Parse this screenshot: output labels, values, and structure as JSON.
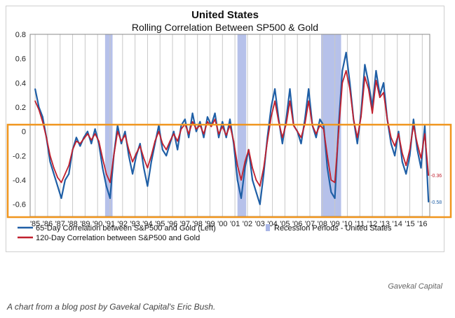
{
  "chart_data": {
    "type": "line",
    "title": "United States",
    "subtitle": "Rolling Correlation Between SP500 & Gold",
    "ylim": [
      -0.7,
      0.8
    ],
    "yticks": [
      0.8,
      0.6,
      0.4,
      0.2,
      0,
      -0.2,
      -0.4,
      -0.6
    ],
    "ytick_labels": [
      "0.8",
      "0.6",
      "0.4",
      "0.2",
      "0",
      "-0.2",
      "-0.4",
      "-0.6"
    ],
    "xlim": [
      1984.6,
      2016.6
    ],
    "xtick_labels": [
      "'85",
      "'86",
      "'87",
      "'88",
      "'89",
      "'90",
      "'91",
      "'92",
      "'93",
      "'94",
      "'95",
      "'96",
      "'97",
      "'98",
      "'99",
      "'00",
      "'01",
      "'02",
      "'03",
      "'04",
      "'05",
      "'06",
      "'07",
      "'08",
      "'09",
      "'10",
      "'11",
      "'12",
      "'13",
      "'14",
      "'15",
      "'16"
    ],
    "grid": true,
    "legend_position": "bottom",
    "recessions": [
      [
        1990.6,
        1991.2
      ],
      [
        2001.2,
        2001.9
      ],
      [
        2007.9,
        2009.5
      ]
    ],
    "series": [
      {
        "name": "65-Day Correlation between S&P500 and Gold (Left)",
        "color": "#1f5fa6",
        "x": [
          1985.0,
          1985.3,
          1985.6,
          1985.9,
          1986.2,
          1986.5,
          1986.8,
          1987.1,
          1987.4,
          1987.7,
          1988.0,
          1988.3,
          1988.6,
          1988.9,
          1989.2,
          1989.5,
          1989.8,
          1990.1,
          1990.4,
          1990.7,
          1991.0,
          1991.3,
          1991.6,
          1991.9,
          1992.2,
          1992.5,
          1992.8,
          1993.1,
          1993.4,
          1993.7,
          1994.0,
          1994.3,
          1994.6,
          1994.9,
          1995.2,
          1995.5,
          1995.8,
          1996.1,
          1996.4,
          1996.7,
          1997.0,
          1997.3,
          1997.6,
          1997.9,
          1998.2,
          1998.5,
          1998.8,
          1999.1,
          1999.4,
          1999.7,
          2000.0,
          2000.3,
          2000.6,
          2000.9,
          2001.2,
          2001.5,
          2001.8,
          2002.1,
          2002.4,
          2002.7,
          2003.0,
          2003.3,
          2003.6,
          2003.9,
          2004.2,
          2004.5,
          2004.8,
          2005.1,
          2005.4,
          2005.7,
          2006.0,
          2006.3,
          2006.6,
          2006.9,
          2007.2,
          2007.5,
          2007.8,
          2008.1,
          2008.4,
          2008.7,
          2009.0,
          2009.3,
          2009.6,
          2009.9,
          2010.2,
          2010.5,
          2010.8,
          2011.1,
          2011.4,
          2011.7,
          2012.0,
          2012.3,
          2012.6,
          2012.9,
          2013.2,
          2013.5,
          2013.8,
          2014.1,
          2014.4,
          2014.7,
          2015.0,
          2015.3,
          2015.6,
          2015.9,
          2016.2,
          2016.5
        ],
        "y": [
          0.35,
          0.2,
          0.12,
          -0.05,
          -0.25,
          -0.35,
          -0.45,
          -0.55,
          -0.4,
          -0.35,
          -0.15,
          -0.05,
          -0.12,
          -0.05,
          0.0,
          -0.1,
          0.02,
          -0.1,
          -0.3,
          -0.45,
          -0.55,
          -0.2,
          0.05,
          -0.1,
          0.0,
          -0.2,
          -0.35,
          -0.2,
          -0.1,
          -0.3,
          -0.45,
          -0.25,
          -0.1,
          0.05,
          -0.15,
          -0.2,
          -0.1,
          0.0,
          -0.15,
          0.05,
          0.1,
          -0.05,
          0.15,
          0.0,
          0.08,
          -0.05,
          0.12,
          0.05,
          0.15,
          -0.05,
          0.08,
          -0.05,
          0.1,
          -0.1,
          -0.4,
          -0.55,
          -0.3,
          -0.15,
          -0.4,
          -0.5,
          -0.6,
          -0.35,
          -0.05,
          0.2,
          0.35,
          0.1,
          -0.1,
          0.1,
          0.35,
          0.05,
          0.0,
          -0.1,
          0.1,
          0.35,
          0.05,
          -0.05,
          0.1,
          0.05,
          -0.3,
          -0.5,
          -0.55,
          0.05,
          0.5,
          0.65,
          0.4,
          0.1,
          -0.1,
          0.15,
          0.55,
          0.4,
          0.2,
          0.5,
          0.3,
          0.4,
          0.1,
          -0.1,
          -0.2,
          0.0,
          -0.25,
          -0.35,
          -0.2,
          0.1,
          -0.15,
          -0.3,
          0.05,
          -0.58
        ]
      },
      {
        "name": "120-Day Correlation between S&P500 and Gold",
        "color": "#c0202e",
        "x": [
          1985.0,
          1985.3,
          1985.6,
          1985.9,
          1986.2,
          1986.5,
          1986.8,
          1987.1,
          1987.4,
          1987.7,
          1988.0,
          1988.3,
          1988.6,
          1988.9,
          1989.2,
          1989.5,
          1989.8,
          1990.1,
          1990.4,
          1990.7,
          1991.0,
          1991.3,
          1991.6,
          1991.9,
          1992.2,
          1992.5,
          1992.8,
          1993.1,
          1993.4,
          1993.7,
          1994.0,
          1994.3,
          1994.6,
          1994.9,
          1995.2,
          1995.5,
          1995.8,
          1996.1,
          1996.4,
          1996.7,
          1997.0,
          1997.3,
          1997.6,
          1997.9,
          1998.2,
          1998.5,
          1998.8,
          1999.1,
          1999.4,
          1999.7,
          2000.0,
          2000.3,
          2000.6,
          2000.9,
          2001.2,
          2001.5,
          2001.8,
          2002.1,
          2002.4,
          2002.7,
          2003.0,
          2003.3,
          2003.6,
          2003.9,
          2004.2,
          2004.5,
          2004.8,
          2005.1,
          2005.4,
          2005.7,
          2006.0,
          2006.3,
          2006.6,
          2006.9,
          2007.2,
          2007.5,
          2007.8,
          2008.1,
          2008.4,
          2008.7,
          2009.0,
          2009.3,
          2009.6,
          2009.9,
          2010.2,
          2010.5,
          2010.8,
          2011.1,
          2011.4,
          2011.7,
          2012.0,
          2012.3,
          2012.6,
          2012.9,
          2013.2,
          2013.5,
          2013.8,
          2014.1,
          2014.4,
          2014.7,
          2015.0,
          2015.3,
          2015.6,
          2015.9,
          2016.2,
          2016.5
        ],
        "y": [
          0.25,
          0.18,
          0.08,
          -0.05,
          -0.2,
          -0.3,
          -0.38,
          -0.42,
          -0.35,
          -0.28,
          -0.15,
          -0.08,
          -0.1,
          -0.06,
          -0.02,
          -0.07,
          -0.02,
          -0.08,
          -0.22,
          -0.35,
          -0.42,
          -0.2,
          0.0,
          -0.08,
          -0.03,
          -0.15,
          -0.25,
          -0.18,
          -0.12,
          -0.22,
          -0.3,
          -0.2,
          -0.08,
          0.0,
          -0.1,
          -0.15,
          -0.08,
          -0.02,
          -0.08,
          0.02,
          0.06,
          -0.02,
          0.08,
          0.02,
          0.05,
          -0.02,
          0.08,
          0.04,
          0.1,
          -0.02,
          0.04,
          -0.03,
          0.05,
          -0.08,
          -0.28,
          -0.4,
          -0.25,
          -0.15,
          -0.3,
          -0.4,
          -0.45,
          -0.3,
          -0.08,
          0.12,
          0.25,
          0.08,
          -0.05,
          0.06,
          0.25,
          0.05,
          0.0,
          -0.05,
          0.06,
          0.25,
          0.05,
          -0.02,
          0.05,
          0.02,
          -0.2,
          -0.4,
          -0.42,
          0.0,
          0.4,
          0.5,
          0.35,
          0.1,
          -0.05,
          0.12,
          0.45,
          0.35,
          0.15,
          0.42,
          0.28,
          0.32,
          0.1,
          -0.05,
          -0.12,
          -0.02,
          -0.18,
          -0.28,
          -0.15,
          0.05,
          -0.1,
          -0.22,
          -0.02,
          -0.36
        ]
      }
    ],
    "end_labels": [
      {
        "text": "-0.36",
        "series": 1,
        "color": "#c0202e",
        "value": -0.36
      },
      {
        "text": "-0.58",
        "series": 0,
        "color": "#1f5fa6",
        "value": -0.58
      }
    ],
    "legend": [
      {
        "label": "65-Day Correlation between S&P500 and Gold (Left)",
        "kind": "line",
        "color": "#1f5fa6"
      },
      {
        "label": "Recession Periods - United States",
        "kind": "swatch",
        "color": "#a9b6e6"
      },
      {
        "label": "120-Day Correlation between S&P500 and Gold",
        "kind": "line",
        "color": "#c0202e"
      }
    ]
  },
  "highlight_color": "#f0961e",
  "attribution": "Gavekal Capital",
  "caption": "A chart from a blog post by Gavekal Capital's Eric Bush."
}
